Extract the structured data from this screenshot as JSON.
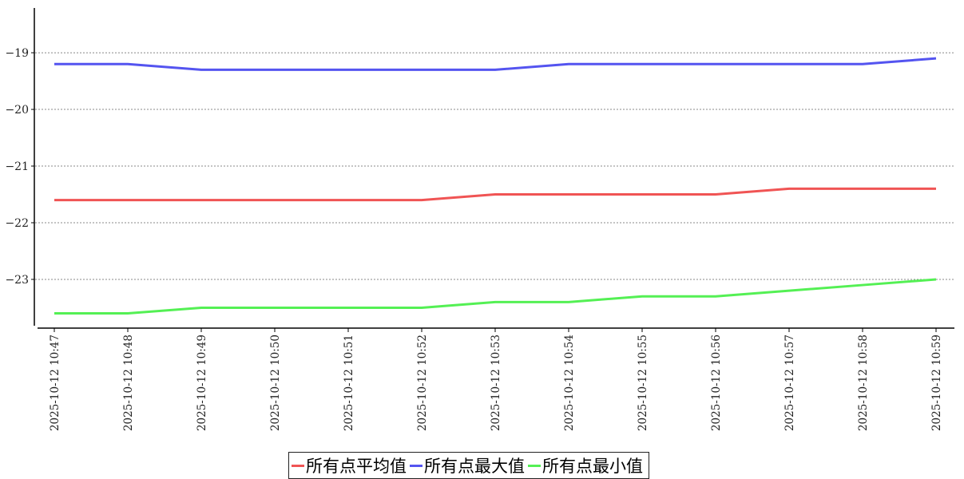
{
  "chart_data": {
    "type": "line",
    "title": "",
    "xlabel": "",
    "ylabel": "",
    "x": [
      "2025-10-12 10:47",
      "2025-10-12 10:48",
      "2025-10-12 10:49",
      "2025-10-12 10:50",
      "2025-10-12 10:51",
      "2025-10-12 10:52",
      "2025-10-12 10:53",
      "2025-10-12 10:54",
      "2025-10-12 10:55",
      "2025-10-12 10:56",
      "2025-10-12 10:57",
      "2025-10-12 10:58",
      "2025-10-12 10:59"
    ],
    "ylim": [
      -23.86,
      -18.21
    ],
    "yticks": [
      -19,
      -20,
      -21,
      -22,
      -23
    ],
    "ytick_labels": [
      "−19",
      "−20",
      "−21",
      "−22",
      "−23"
    ],
    "grid": "horizontal dashed",
    "legend_position": "bottom-center",
    "series": [
      {
        "name": "所有点平均值",
        "color": "#f05454",
        "values": [
          -21.6,
          -21.6,
          -21.6,
          -21.6,
          -21.6,
          -21.6,
          -21.5,
          -21.5,
          -21.5,
          -21.5,
          -21.4,
          -21.4,
          -21.4
        ]
      },
      {
        "name": "所有点最大值",
        "color": "#5454f0",
        "values": [
          -19.2,
          -19.2,
          -19.3,
          -19.3,
          -19.3,
          -19.3,
          -19.3,
          -19.2,
          -19.2,
          -19.2,
          -19.2,
          -19.2,
          -19.1
        ]
      },
      {
        "name": "所有点最小值",
        "color": "#54f054",
        "values": [
          -23.6,
          -23.6,
          -23.5,
          -23.5,
          -23.5,
          -23.5,
          -23.4,
          -23.4,
          -23.3,
          -23.3,
          -23.2,
          -23.1,
          -23.0
        ]
      }
    ]
  }
}
